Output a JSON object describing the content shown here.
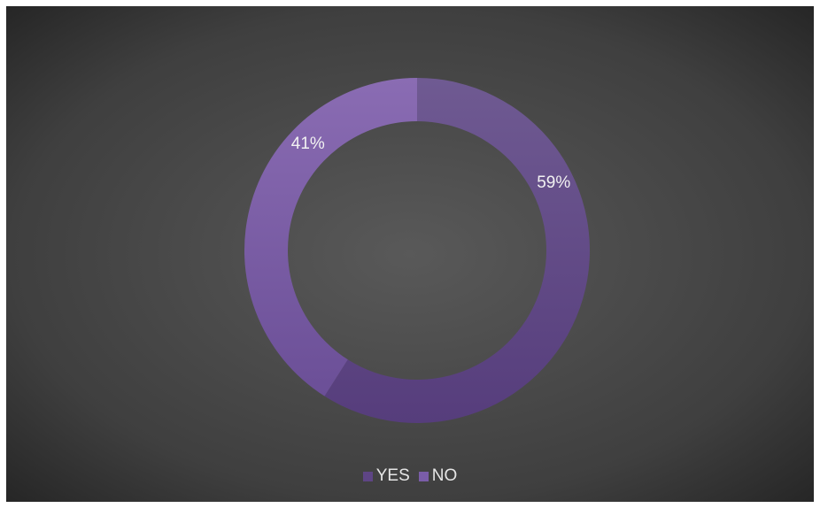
{
  "chart_data": {
    "type": "pie",
    "donut": true,
    "categories": [
      "YES",
      "NO"
    ],
    "values": [
      59,
      41
    ],
    "data_labels": [
      "59%",
      "41%"
    ],
    "colors": [
      "#5e4585",
      "#7a5da8"
    ],
    "title": "",
    "legend_position": "bottom"
  },
  "legend": {
    "items": [
      {
        "label": "YES",
        "color": "#5e4585"
      },
      {
        "label": "NO",
        "color": "#7a5da8"
      }
    ]
  }
}
